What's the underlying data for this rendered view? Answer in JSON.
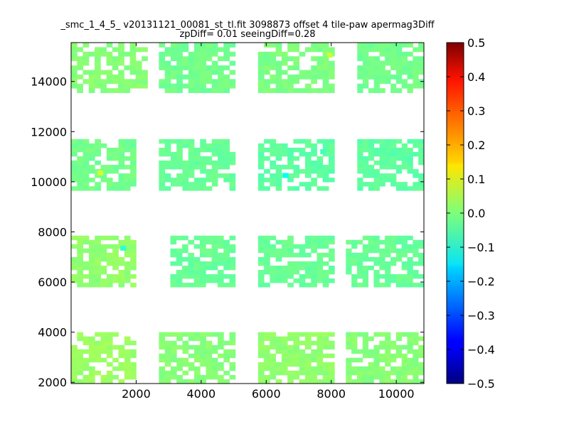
{
  "chart_data": {
    "type": "heatmap",
    "title_lines": [
      "_smc_1_4_5_ v20131121_00081_st_tl.fit 3098873 offset 4 tile-paw apermag3Diff",
      "zpDiff= 0.01 seeingDiff=0.28"
    ],
    "xlabel": "",
    "ylabel": "",
    "xlim": [
      0,
      10850
    ],
    "ylim": [
      1950,
      15550
    ],
    "x_ticks": [
      2000,
      4000,
      6000,
      8000,
      10000
    ],
    "x_tick_labels": [
      "2000",
      "4000",
      "6000",
      "8000",
      "10000"
    ],
    "y_ticks": [
      2000,
      4000,
      6000,
      8000,
      10000,
      12000,
      14000
    ],
    "y_tick_labels": [
      "2000",
      "4000",
      "6000",
      "8000",
      "10000",
      "12000",
      "14000"
    ],
    "colorbar": {
      "colormap": "jet",
      "range": [
        -0.5,
        0.5
      ],
      "ticks": [
        0.5,
        0.4,
        0.3,
        0.2,
        0.1,
        0.0,
        -0.1,
        -0.2,
        -0.3,
        -0.4,
        -0.5
      ],
      "tick_labels": [
        "0.5",
        "0.4",
        "0.3",
        "0.2",
        "0.1",
        "0.0",
        "−0.1",
        "−0.2",
        "−0.3",
        "−0.4",
        "−0.5"
      ]
    },
    "grid": false,
    "approximate_value": 0.0,
    "tiles": [
      {
        "x": [
          0,
          2350
        ],
        "y": [
          13550,
          15550
        ],
        "value": 0.02
      },
      {
        "x": [
          2700,
          5050
        ],
        "y": [
          13550,
          15550
        ],
        "value": 0.0
      },
      {
        "x": [
          5750,
          8100
        ],
        "y": [
          13550,
          15550
        ],
        "value": 0.01
      },
      {
        "x": [
          8800,
          10850
        ],
        "y": [
          13550,
          15550
        ],
        "value": 0.0
      },
      {
        "x": [
          0,
          2000
        ],
        "y": [
          9650,
          11700
        ],
        "value": 0.0
      },
      {
        "x": [
          2700,
          5050
        ],
        "y": [
          9650,
          11700
        ],
        "value": -0.01
      },
      {
        "x": [
          5750,
          8100
        ],
        "y": [
          9650,
          11700
        ],
        "value": -0.02
      },
      {
        "x": [
          8800,
          10850
        ],
        "y": [
          9650,
          11700
        ],
        "value": -0.02
      },
      {
        "x": [
          0,
          2000
        ],
        "y": [
          5800,
          7850
        ],
        "value": 0.03
      },
      {
        "x": [
          3050,
          5050
        ],
        "y": [
          5800,
          7850
        ],
        "value": -0.01
      },
      {
        "x": [
          5750,
          8100
        ],
        "y": [
          5800,
          7850
        ],
        "value": -0.01
      },
      {
        "x": [
          8450,
          10850
        ],
        "y": [
          5800,
          7850
        ],
        "value": -0.01
      },
      {
        "x": [
          0,
          2000
        ],
        "y": [
          1950,
          4000
        ],
        "value": 0.04
      },
      {
        "x": [
          2700,
          5050
        ],
        "y": [
          1950,
          4000
        ],
        "value": 0.02
      },
      {
        "x": [
          5750,
          8100
        ],
        "y": [
          1950,
          4000
        ],
        "value": 0.03
      },
      {
        "x": [
          8450,
          10850
        ],
        "y": [
          1950,
          4000
        ],
        "value": 0.02
      }
    ],
    "outliers": [
      {
        "x": 6600,
        "y": 10250,
        "value": -0.12
      },
      {
        "x": 1600,
        "y": 7350,
        "value": -0.08
      },
      {
        "x": 7750,
        "y": 11200,
        "value": -0.06
      },
      {
        "x": 900,
        "y": 10350,
        "value": 0.08
      },
      {
        "x": 7950,
        "y": 15050,
        "value": 0.07
      }
    ]
  }
}
